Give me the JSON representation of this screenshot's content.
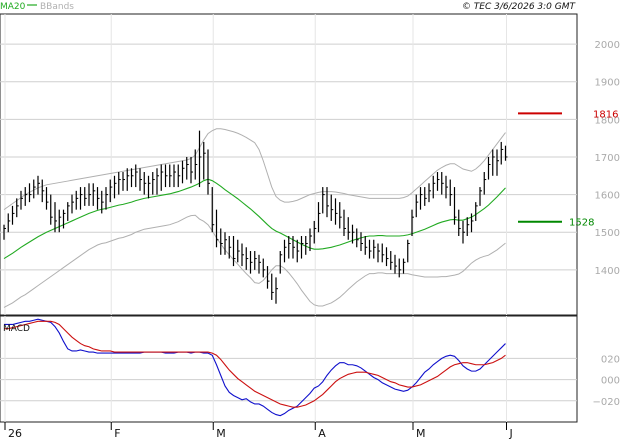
{
  "legend": {
    "ma_label": "MA20",
    "bb_label": "BBands",
    "ma_color": "#22aa22",
    "bb_color": "#b0b0b0"
  },
  "header_right": "© TEC 3/6/2026 3:0 GMT",
  "macd_label": "MACD",
  "price_tags": [
    {
      "label": "1816",
      "value": 1816,
      "color": "#cc0000"
    },
    {
      "label": "1528",
      "value": 1528,
      "color": "#008800"
    }
  ],
  "chart_data": [
    {
      "type": "line",
      "panel": "price",
      "yticks": [
        1400,
        1500,
        1600,
        1700,
        1800,
        1900,
        2000
      ],
      "ylim": [
        1280,
        2080
      ],
      "x_month_labels": [
        {
          "label": "26",
          "index": 0
        },
        {
          "label": "F",
          "index": 25
        },
        {
          "label": "M",
          "index": 49
        },
        {
          "label": "A",
          "index": 73
        },
        {
          "label": "M",
          "index": 96
        },
        {
          "label": "J",
          "index": 118
        }
      ],
      "bars": {
        "high": [
          1520,
          1550,
          1570,
          1590,
          1610,
          1620,
          1630,
          1640,
          1650,
          1640,
          1620,
          1600,
          1580,
          1560,
          1560,
          1580,
          1600,
          1610,
          1620,
          1620,
          1630,
          1630,
          1620,
          1610,
          1620,
          1640,
          1650,
          1660,
          1660,
          1670,
          1670,
          1680,
          1670,
          1660,
          1650,
          1660,
          1670,
          1680,
          1680,
          1680,
          1680,
          1680,
          1690,
          1700,
          1700,
          1720,
          1770,
          1740,
          1720,
          1620,
          1560,
          1510,
          1500,
          1490,
          1490,
          1480,
          1470,
          1460,
          1450,
          1450,
          1440,
          1430,
          1410,
          1390,
          1380,
          1450,
          1480,
          1490,
          1490,
          1480,
          1490,
          1490,
          1510,
          1530,
          1580,
          1620,
          1620,
          1600,
          1590,
          1580,
          1560,
          1540,
          1520,
          1510,
          1500,
          1490,
          1480,
          1480,
          1470,
          1470,
          1460,
          1450,
          1440,
          1430,
          1430,
          1480,
          1560,
          1600,
          1620,
          1620,
          1630,
          1650,
          1660,
          1660,
          1650,
          1640,
          1620,
          1560,
          1530,
          1540,
          1550,
          1580,
          1620,
          1660,
          1700,
          1720,
          1720,
          1740,
          1730
        ],
        "low": [
          1480,
          1500,
          1520,
          1540,
          1560,
          1570,
          1580,
          1590,
          1600,
          1580,
          1560,
          1520,
          1500,
          1500,
          1510,
          1530,
          1550,
          1560,
          1560,
          1570,
          1570,
          1570,
          1560,
          1550,
          1560,
          1580,
          1590,
          1600,
          1610,
          1610,
          1620,
          1620,
          1610,
          1600,
          1590,
          1600,
          1600,
          1610,
          1620,
          1620,
          1620,
          1620,
          1630,
          1640,
          1630,
          1640,
          1620,
          1640,
          1600,
          1500,
          1460,
          1440,
          1440,
          1430,
          1410,
          1420,
          1410,
          1400,
          1390,
          1400,
          1390,
          1380,
          1350,
          1320,
          1310,
          1390,
          1420,
          1430,
          1430,
          1420,
          1430,
          1440,
          1450,
          1470,
          1500,
          1550,
          1540,
          1530,
          1520,
          1510,
          1490,
          1480,
          1470,
          1460,
          1450,
          1440,
          1430,
          1430,
          1420,
          1420,
          1410,
          1400,
          1390,
          1380,
          1390,
          1420,
          1490,
          1540,
          1560,
          1570,
          1580,
          1590,
          1610,
          1600,
          1590,
          1570,
          1520,
          1490,
          1470,
          1490,
          1500,
          1530,
          1570,
          1600,
          1640,
          1650,
          1650,
          1680,
          1690
        ],
        "close": [
          1510,
          1530,
          1550,
          1570,
          1590,
          1600,
          1600,
          1620,
          1630,
          1610,
          1580,
          1540,
          1530,
          1540,
          1550,
          1570,
          1580,
          1590,
          1600,
          1590,
          1600,
          1610,
          1590,
          1580,
          1600,
          1620,
          1630,
          1640,
          1640,
          1650,
          1650,
          1660,
          1640,
          1630,
          1630,
          1640,
          1650,
          1660,
          1650,
          1650,
          1660,
          1650,
          1670,
          1680,
          1660,
          1680,
          1700,
          1710,
          1630,
          1520,
          1480,
          1470,
          1480,
          1460,
          1430,
          1450,
          1440,
          1430,
          1420,
          1430,
          1420,
          1400,
          1370,
          1340,
          1350,
          1440,
          1460,
          1470,
          1460,
          1450,
          1470,
          1470,
          1490,
          1510,
          1550,
          1600,
          1570,
          1560,
          1550,
          1540,
          1510,
          1500,
          1500,
          1480,
          1470,
          1460,
          1450,
          1460,
          1450,
          1440,
          1430,
          1420,
          1410,
          1400,
          1420,
          1470,
          1540,
          1580,
          1600,
          1590,
          1610,
          1630,
          1640,
          1630,
          1620,
          1600,
          1540,
          1510,
          1500,
          1520,
          1530,
          1570,
          1610,
          1640,
          1680,
          1700,
          1690,
          1720,
          1700
        ]
      },
      "ma20": [
        1430,
        1437,
        1444,
        1452,
        1460,
        1467,
        1474,
        1481,
        1488,
        1494,
        1500,
        1505,
        1510,
        1515,
        1520,
        1525,
        1530,
        1535,
        1540,
        1545,
        1550,
        1554,
        1558,
        1561,
        1563,
        1566,
        1569,
        1572,
        1574,
        1577,
        1580,
        1584,
        1587,
        1590,
        1592,
        1594,
        1596,
        1598,
        1600,
        1602,
        1605,
        1608,
        1612,
        1616,
        1620,
        1625,
        1630,
        1637,
        1641,
        1637,
        1630,
        1622,
        1613,
        1605,
        1597,
        1589,
        1580,
        1571,
        1562,
        1552,
        1542,
        1531,
        1520,
        1510,
        1503,
        1498,
        1492,
        1486,
        1480,
        1474,
        1468,
        1463,
        1458,
        1455,
        1455,
        1456,
        1458,
        1460,
        1463,
        1466,
        1470,
        1474,
        1478,
        1482,
        1485,
        1488,
        1490,
        1490,
        1491,
        1491,
        1490,
        1490,
        1490,
        1490,
        1491,
        1493,
        1496,
        1500,
        1504,
        1508,
        1513,
        1518,
        1523,
        1527,
        1530,
        1533,
        1534,
        1532,
        1532,
        1536,
        1540,
        1547,
        1555,
        1563,
        1572,
        1583,
        1594,
        1606,
        1618
      ],
      "bb_upper": [
        1560,
        1568,
        1576,
        1584,
        1592,
        1600,
        1606,
        1612,
        1618,
        1622,
        1626,
        1628,
        1630,
        1632,
        1634,
        1636,
        1638,
        1640,
        1642,
        1644,
        1646,
        1648,
        1650,
        1652,
        1654,
        1656,
        1658,
        1660,
        1662,
        1664,
        1666,
        1668,
        1670,
        1672,
        1674,
        1676,
        1678,
        1680,
        1682,
        1684,
        1686,
        1688,
        1690,
        1692,
        1696,
        1705,
        1725,
        1745,
        1762,
        1770,
        1775,
        1775,
        1773,
        1770,
        1767,
        1763,
        1758,
        1752,
        1745,
        1738,
        1720,
        1690,
        1655,
        1620,
        1595,
        1585,
        1580,
        1580,
        1582,
        1585,
        1590,
        1595,
        1600,
        1603,
        1606,
        1608,
        1608,
        1608,
        1607,
        1605,
        1603,
        1600,
        1598,
        1596,
        1594,
        1592,
        1590,
        1590,
        1590,
        1590,
        1590,
        1590,
        1590,
        1590,
        1592,
        1596,
        1605,
        1615,
        1625,
        1635,
        1645,
        1655,
        1665,
        1672,
        1678,
        1682,
        1682,
        1675,
        1668,
        1665,
        1662,
        1668,
        1678,
        1690,
        1705,
        1720,
        1735,
        1750,
        1765
      ],
      "bb_lower": [
        1300,
        1306,
        1312,
        1320,
        1328,
        1334,
        1342,
        1350,
        1358,
        1366,
        1374,
        1382,
        1390,
        1398,
        1406,
        1414,
        1422,
        1430,
        1438,
        1446,
        1454,
        1460,
        1466,
        1470,
        1472,
        1476,
        1480,
        1484,
        1486,
        1490,
        1494,
        1500,
        1504,
        1508,
        1510,
        1512,
        1514,
        1516,
        1518,
        1520,
        1524,
        1528,
        1534,
        1540,
        1544,
        1545,
        1535,
        1529,
        1520,
        1504,
        1485,
        1469,
        1453,
        1440,
        1427,
        1415,
        1402,
        1390,
        1379,
        1366,
        1364,
        1372,
        1385,
        1400,
        1411,
        1411,
        1404,
        1392,
        1378,
        1363,
        1346,
        1331,
        1316,
        1307,
        1304,
        1304,
        1308,
        1312,
        1319,
        1327,
        1337,
        1348,
        1358,
        1368,
        1376,
        1384,
        1390,
        1390,
        1392,
        1392,
        1390,
        1390,
        1390,
        1390,
        1390,
        1390,
        1387,
        1385,
        1383,
        1381,
        1381,
        1381,
        1381,
        1382,
        1382,
        1384,
        1386,
        1389,
        1396,
        1407,
        1418,
        1426,
        1432,
        1436,
        1439,
        1446,
        1453,
        1462,
        1471
      ]
    },
    {
      "type": "line",
      "panel": "macd",
      "yticks": [
        -20,
        0,
        20
      ],
      "ytick_labels": [
        "−020",
        "000",
        "020"
      ],
      "ylim": [
        -40,
        60
      ],
      "series": [
        {
          "name": "",
          "color": "#1010cc",
          "values": [
            52,
            52,
            52,
            53,
            54,
            55,
            55,
            56,
            57,
            56,
            55,
            54,
            50,
            44,
            36,
            29,
            27,
            27,
            28,
            27,
            26,
            26,
            25,
            25,
            25,
            25,
            25,
            25,
            25,
            25,
            25,
            25,
            25,
            26,
            26,
            26,
            26,
            26,
            25,
            25,
            25,
            26,
            26,
            26,
            25,
            26,
            26,
            25,
            25,
            23,
            14,
            4,
            -6,
            -12,
            -15,
            -17,
            -19,
            -18,
            -21,
            -23,
            -23,
            -25,
            -28,
            -31,
            -33,
            -34,
            -32,
            -29,
            -27,
            -25,
            -21,
            -17,
            -13,
            -8,
            -6,
            -2,
            4,
            9,
            13,
            16,
            16,
            14,
            14,
            13,
            11,
            8,
            5,
            2,
            0,
            -3,
            -5,
            -7,
            -9,
            -10,
            -11,
            -10,
            -7,
            -3,
            2,
            7,
            10,
            14,
            17,
            20,
            22,
            23,
            22,
            18,
            13,
            10,
            8,
            8,
            10,
            14,
            18,
            22,
            26,
            30,
            34
          ]
        },
        {
          "name": "",
          "color": "#cc1010",
          "values": [
            48,
            48,
            49,
            50,
            51,
            52,
            53,
            54,
            55,
            55,
            55,
            55,
            54,
            52,
            48,
            44,
            40,
            37,
            34,
            32,
            31,
            29,
            28,
            27,
            27,
            27,
            26,
            26,
            26,
            26,
            26,
            26,
            26,
            26,
            26,
            26,
            26,
            26,
            26,
            26,
            26,
            26,
            26,
            26,
            26,
            26,
            26,
            26,
            26,
            25,
            23,
            19,
            14,
            9,
            5,
            1,
            -2,
            -5,
            -8,
            -11,
            -13,
            -15,
            -17,
            -19,
            -21,
            -23,
            -24,
            -25,
            -26,
            -26,
            -25,
            -24,
            -22,
            -20,
            -17,
            -14,
            -10,
            -6,
            -2,
            1,
            3,
            5,
            6,
            7,
            7,
            7,
            6,
            5,
            4,
            2,
            0,
            -2,
            -3,
            -5,
            -6,
            -7,
            -7,
            -6,
            -5,
            -3,
            -1,
            1,
            3,
            6,
            9,
            12,
            14,
            15,
            16,
            16,
            15,
            14,
            14,
            14,
            15,
            16,
            18,
            20,
            23
          ]
        }
      ]
    }
  ]
}
